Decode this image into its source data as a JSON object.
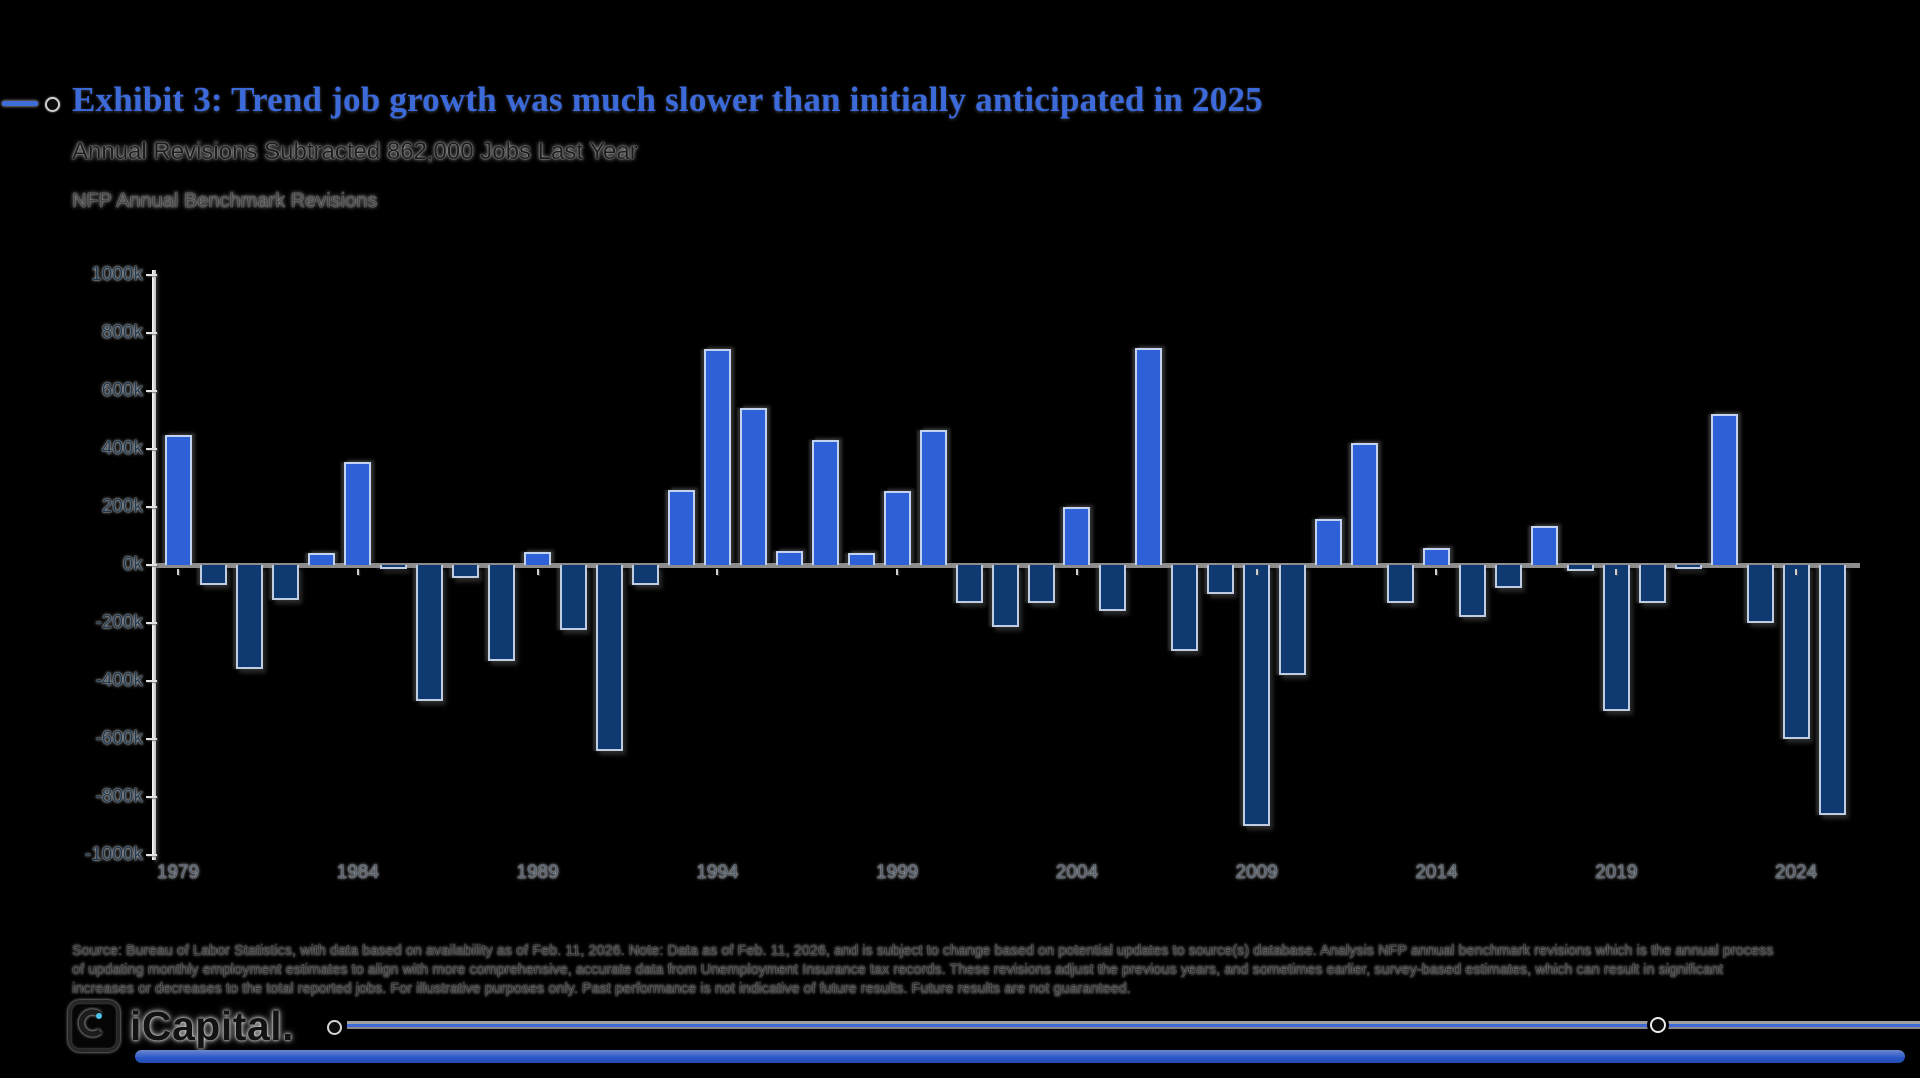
{
  "header": {
    "title": "Exhibit 3: Trend job growth was much slower than initially anticipated in 2025",
    "subtitle": "Annual Revisions Subtracted 862,000 Jobs Last Year",
    "series_label": "NFP Annual Benchmark Revisions"
  },
  "chart_data": {
    "type": "bar",
    "title": "NFP Annual Benchmark Revisions",
    "xlabel": "",
    "ylabel": "",
    "ylim": [
      -1000,
      1000
    ],
    "grid": false,
    "unit": "thousands of jobs",
    "y_ticks": [
      {
        "value": 1000,
        "label": "1000k"
      },
      {
        "value": 800,
        "label": "800k"
      },
      {
        "value": 600,
        "label": "600k"
      },
      {
        "value": 400,
        "label": "400k"
      },
      {
        "value": 200,
        "label": "200k"
      },
      {
        "value": 0,
        "label": "0k"
      },
      {
        "value": -200,
        "label": "-200k"
      },
      {
        "value": -400,
        "label": "-400k"
      },
      {
        "value": -600,
        "label": "-600k"
      },
      {
        "value": -800,
        "label": "-800k"
      },
      {
        "value": -1000,
        "label": "-1000k"
      }
    ],
    "x_tick_years": [
      1979,
      1984,
      1989,
      1994,
      1999,
      2004,
      2009,
      2014,
      2019,
      2024
    ],
    "years": [
      1979,
      1980,
      1981,
      1982,
      1983,
      1984,
      1985,
      1986,
      1987,
      1988,
      1989,
      1990,
      1991,
      1992,
      1993,
      1994,
      1995,
      1996,
      1997,
      1998,
      1999,
      2000,
      2001,
      2002,
      2003,
      2004,
      2005,
      2006,
      2007,
      2008,
      2009,
      2010,
      2011,
      2012,
      2013,
      2014,
      2015,
      2016,
      2017,
      2018,
      2019,
      2020,
      2021,
      2022,
      2023,
      2024,
      2025
    ],
    "values": [
      450,
      -70,
      -360,
      -120,
      40,
      355,
      -15,
      -470,
      -45,
      -330,
      45,
      -225,
      -640,
      -70,
      260,
      745,
      540,
      50,
      430,
      40,
      255,
      465,
      -130,
      -215,
      -130,
      200,
      -160,
      750,
      -295,
      -100,
      -900,
      -380,
      160,
      420,
      -130,
      60,
      -180,
      -80,
      135,
      -20,
      -505,
      -130,
      -15,
      520,
      -200,
      -600,
      -862
    ],
    "colors": {
      "positive": "#2e61d8",
      "negative": "#0e3a71",
      "zero_line": "#8d8d8d",
      "axis": "#ffffff"
    }
  },
  "source": {
    "lines": [
      "Source: Bureau of Labor Statistics, with data based on availability as of Feb. 11, 2026. Note: Data as of Feb. 11, 2026, and is subject to change based on potential updates to source(s) database. Analysis NFP annual benchmark revisions which is the annual process",
      "of updating monthly employment estimates to align with more comprehensive, accurate data from Unemployment Insurance tax records. These revisions adjust the previous years, and sometimes earlier, survey-based estimates, which can result in significant",
      "increases or decreases to the total reported jobs. For illustrative purposes only. Past performance is not indicative of future results. Future results are not guaranteed."
    ]
  },
  "footer": {
    "logo_text": "iCapital.",
    "accent_color": "#2a57c8"
  }
}
